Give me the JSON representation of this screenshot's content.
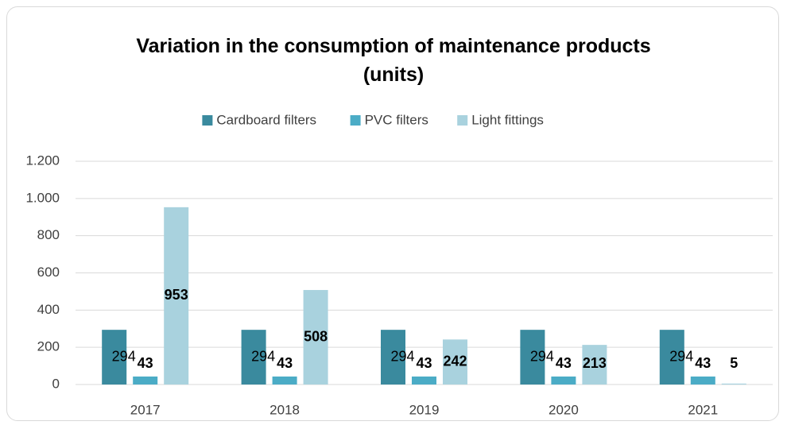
{
  "chart_data": {
    "type": "bar",
    "title": "Variation in the consumption of maintenance products (units)",
    "categories": [
      "2017",
      "2018",
      "2019",
      "2020",
      "2021"
    ],
    "series": [
      {
        "name": "Cardboard filters",
        "color": "#3a8a9e",
        "values": [
          294,
          294,
          294,
          294,
          294
        ]
      },
      {
        "name": "PVC filters",
        "color": "#4bacc6",
        "values": [
          43,
          43,
          43,
          43,
          43
        ]
      },
      {
        "name": "Light fittings",
        "color": "#a9d2de",
        "values": [
          953,
          508,
          242,
          213,
          5
        ]
      }
    ],
    "ylim": [
      0,
      1200
    ],
    "yticks": [
      0,
      200,
      400,
      600,
      800,
      {
        "value": 1000,
        "label": "1.000"
      },
      {
        "value": 1200,
        "label": "1.200"
      }
    ],
    "grid": true,
    "legend": "top"
  }
}
